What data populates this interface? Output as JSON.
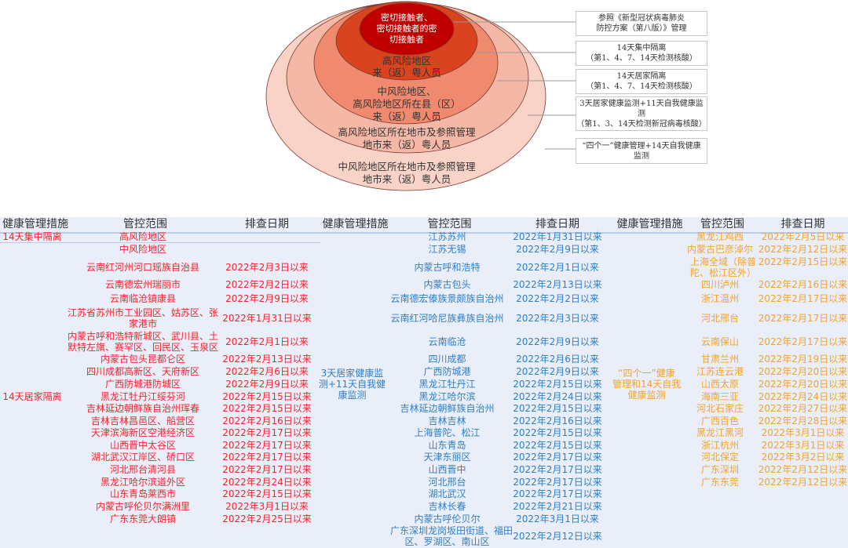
{
  "diagram": {
    "levels": [
      {
        "lines": [
          "密切接触者、",
          "密切接触者的密",
          "切接触者"
        ],
        "color": "#c00000"
      },
      {
        "lines": [
          "高风险地区",
          "来（返）粤人员"
        ],
        "color": "#d9441e"
      },
      {
        "lines": [
          "中风险地区、",
          "高风险地区所在县（区）",
          "来（返）粤人员"
        ],
        "color": "#ef8a6e"
      },
      {
        "lines": [
          "高风险地区所在地市及参照管理",
          "地市来（返）粤人员"
        ],
        "color": "#f6b8a6"
      },
      {
        "lines": [
          "中风险地区所在地市及参照管理",
          "地市来（返）粤人员"
        ],
        "color": "#fad3c8"
      }
    ],
    "boxes": [
      "参照《新型冠状病毒肺炎\n防控方案（第八版）》管理",
      "14天集中隔离\n（第1、4、7、14天检测核酸）",
      "14天居家隔离\n（第1、4、7、14天检测核酸）",
      "3天居家健康监测+11天自我健康监测\n（第1、3、14天检测新冠病毒核酸）",
      "“四个一”健康管理+14天自我健康\n监测"
    ]
  },
  "headers": {
    "measure": "健康管理措施",
    "scope": "管控范围",
    "date": "排查日期"
  },
  "colors": {
    "red": "#f5222d",
    "blue": "#2f7fc4",
    "orange": "#f5a326"
  },
  "tables": [
    {
      "theme": "red",
      "measures": [
        "14天集中隔离",
        "14天居家隔离"
      ],
      "items": [
        {
          "scope": "高风险地区",
          "date": ""
        },
        {
          "scope": "中风险地区",
          "date": ""
        },
        {
          "scope": "云南红河州河口瑶族自治县",
          "date": "2022年2月3日以来"
        },
        {
          "scope": "云南德宏州瑞丽市",
          "date": "2022年2月2日以来"
        },
        {
          "scope": "云南临沧镇康县",
          "date": "2022年2月9日以来"
        },
        {
          "scope": "江苏省苏州市工业园区、姑苏区、张\n家港市",
          "date": "2022年1月31日以来"
        },
        {
          "scope": "内蒙古呼和浩特新城区、武川县、土\n默特左旗、赛罕区、回民区、玉泉区",
          "date": "2022年2月1日以来"
        },
        {
          "scope": "内蒙古包头昆都仑区",
          "date": "2022年2月13日以来"
        },
        {
          "scope": "四川成都高新区、天府新区",
          "date": "2022年2月6日以来"
        },
        {
          "scope": "广西防城港防城区",
          "date": "2022年2月9日以来"
        },
        {
          "scope": "黑龙江牡丹江绥芬河",
          "date": "2022年2月15日以来"
        },
        {
          "scope": "吉林延边朝鲜族自治州珲春",
          "date": "2022年2月15日以来"
        },
        {
          "scope": "吉林吉林昌邑区、船营区",
          "date": "2022年2月16日以来"
        },
        {
          "scope": "天津滨海新区空港经济区",
          "date": "2022年2月17日以来"
        },
        {
          "scope": "山西晋中太谷区",
          "date": "2022年2月17日以来"
        },
        {
          "scope": "湖北武汉江岸区、硚口区",
          "date": "2022年2月17日以来"
        },
        {
          "scope": "河北邢台清河县",
          "date": "2022年2月17日以来"
        },
        {
          "scope": "黑龙江哈尔滨道外区",
          "date": "2022年2月24日以来"
        },
        {
          "scope": "山东青岛莱西市",
          "date": "2022年2月15日以来"
        },
        {
          "scope": "内蒙古呼伦贝尔满洲里",
          "date": "2022年3月1日以来"
        },
        {
          "scope": "广东东莞大朗镇",
          "date": "2022年2月25日以来"
        }
      ]
    },
    {
      "theme": "blue",
      "measures": [
        "3天居家健康监\n测+11天自我健\n康监测"
      ],
      "items": [
        {
          "scope": "江苏苏州",
          "date": "2022年1月31日以来"
        },
        {
          "scope": "江苏无锡",
          "date": "2022年2月9日以来"
        },
        {
          "scope": "内蒙古呼和浩特",
          "date": "2022年2月1日以来"
        },
        {
          "scope": "内蒙古包头",
          "date": "2022年2月13日以来"
        },
        {
          "scope": "云南德宏傣族景颇族自治州",
          "date": "2022年2月2日以来"
        },
        {
          "scope": "云南红河哈尼族彝族自治州",
          "date": "2022年2月3日以来"
        },
        {
          "scope": "云南临沧",
          "date": "2022年2月9日以来"
        },
        {
          "scope": "四川成都",
          "date": "2022年2月6日以来"
        },
        {
          "scope": "广西防城港",
          "date": "2022年2月9日以来"
        },
        {
          "scope": "黑龙江牡丹江",
          "date": "2022年2月15日以来"
        },
        {
          "scope": "黑龙江哈尔滨",
          "date": "2022年2月24日以来"
        },
        {
          "scope": "吉林延边朝鲜族自治州",
          "date": "2022年2月15日以来"
        },
        {
          "scope": "吉林吉林",
          "date": "2022年2月16日以来"
        },
        {
          "scope": "上海普陀、松江",
          "date": "2022年2月15日以来"
        },
        {
          "scope": "山东青岛",
          "date": "2022年2月15日以来"
        },
        {
          "scope": "天津东丽区",
          "date": "2022年2月17日以来"
        },
        {
          "scope": "山西晋中",
          "date": "2022年2月17日以来"
        },
        {
          "scope": "河北邢台",
          "date": "2022年2月17日以来"
        },
        {
          "scope": "湖北武汉",
          "date": "2022年2月17日以来"
        },
        {
          "scope": "吉林长春",
          "date": "2022年2月21日以来"
        },
        {
          "scope": "内蒙古呼伦贝尔",
          "date": "2022年3月1日以来"
        },
        {
          "scope": "广东深圳龙岗坂田街道、福田\n区、罗湖区、南山区",
          "date": "2022年2月12日以来"
        }
      ]
    },
    {
      "theme": "orange",
      "measures": [
        "“四个一”健康\n管理和14天自我\n健康监测"
      ],
      "items": [
        {
          "scope": "黑龙江鸡西",
          "date": "2022年2月5日以来"
        },
        {
          "scope": "内蒙古巴彦淖尔",
          "date": "2022年2月12日以来"
        },
        {
          "scope": "上海全域（除普\n陀、松江区外）",
          "date": "2022年2月15日以来"
        },
        {
          "scope": "四川泸州",
          "date": "2022年2月16日以来"
        },
        {
          "scope": "浙江温州",
          "date": "2022年2月17日以来"
        },
        {
          "scope": "河北邢台",
          "date": "2022年2月17日以来"
        },
        {
          "scope": "云南保山",
          "date": "2022年2月17日以来"
        },
        {
          "scope": "甘肃兰州",
          "date": "2022年2月19日以来"
        },
        {
          "scope": "江苏连云港",
          "date": "2022年2月20日以来"
        },
        {
          "scope": "山西太原",
          "date": "2022年2月20日以来"
        },
        {
          "scope": "海南三亚",
          "date": "2022年2月24日以来"
        },
        {
          "scope": "河北石家庄",
          "date": "2022年2月27日以来"
        },
        {
          "scope": "广西百色",
          "date": "2022年2月28日以来"
        },
        {
          "scope": "黑龙江黑河",
          "date": "2022年3月1日以来"
        },
        {
          "scope": "浙江杭州",
          "date": "2022年3月1日以来"
        },
        {
          "scope": "河北保定",
          "date": "2022年3月2日以来"
        },
        {
          "scope": "广东深圳",
          "date": "2022年2月12日以来"
        },
        {
          "scope": "广东东莞",
          "date": "2022年2月12日以来"
        }
      ]
    }
  ]
}
